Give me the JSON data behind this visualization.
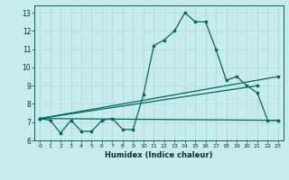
{
  "xlabel": "Humidex (Indice chaleur)",
  "background_color": "#c8ecec",
  "grid_color": "#b0d8d8",
  "line_color": "#006666",
  "xlim": [
    -0.5,
    23.5
  ],
  "ylim": [
    6.0,
    13.4
  ],
  "xticks": [
    0,
    1,
    2,
    3,
    4,
    5,
    6,
    7,
    8,
    9,
    10,
    11,
    12,
    13,
    14,
    15,
    16,
    17,
    18,
    19,
    20,
    21,
    22,
    23
  ],
  "yticks": [
    6,
    7,
    8,
    9,
    10,
    11,
    12,
    13
  ],
  "line1_x": [
    0,
    1,
    2,
    3,
    4,
    5,
    6,
    7,
    8,
    9,
    10,
    11,
    12,
    13,
    14,
    15,
    16,
    17,
    18,
    19,
    20,
    21,
    22,
    23
  ],
  "line1_y": [
    7.2,
    7.1,
    6.4,
    7.1,
    6.5,
    6.5,
    7.1,
    7.2,
    6.6,
    6.6,
    8.5,
    11.2,
    11.5,
    12.0,
    13.0,
    12.5,
    12.5,
    11.0,
    9.3,
    9.5,
    9.0,
    8.6,
    7.1,
    7.1
  ],
  "line2_x": [
    0,
    23
  ],
  "line2_y": [
    7.2,
    9.5
  ],
  "line3_x": [
    0,
    21
  ],
  "line3_y": [
    7.2,
    9.0
  ],
  "line4_x": [
    0,
    23
  ],
  "line4_y": [
    7.2,
    7.1
  ]
}
